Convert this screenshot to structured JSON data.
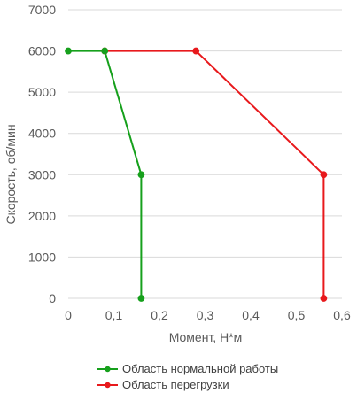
{
  "chart_data": {
    "type": "line",
    "xlabel": "Момент, Н*м",
    "ylabel": "Скорость, об/мин",
    "xlim": [
      0,
      0.6
    ],
    "ylim": [
      0,
      7000
    ],
    "xticks": [
      0,
      0.1,
      0.2,
      0.3,
      0.4,
      0.5,
      0.6
    ],
    "xtick_labels": [
      "0",
      "0,1",
      "0,2",
      "0,3",
      "0,4",
      "0,5",
      "0,6"
    ],
    "yticks": [
      0,
      1000,
      2000,
      3000,
      4000,
      5000,
      6000,
      7000
    ],
    "ytick_labels": [
      "0",
      "1000",
      "2000",
      "3000",
      "4000",
      "5000",
      "6000",
      "7000"
    ],
    "grid": "horizontal",
    "legend_position": "bottom",
    "series": [
      {
        "name": "Область нормальной работы",
        "color": "#16a01c",
        "x": [
          0,
          0.08,
          0.16,
          0.16
        ],
        "y": [
          6000,
          6000,
          3000,
          0
        ]
      },
      {
        "name": "Область перегрузки",
        "color": "#e8191c",
        "x": [
          0.08,
          0.28,
          0.56,
          0.56
        ],
        "y": [
          6000,
          6000,
          3000,
          0
        ]
      }
    ]
  }
}
